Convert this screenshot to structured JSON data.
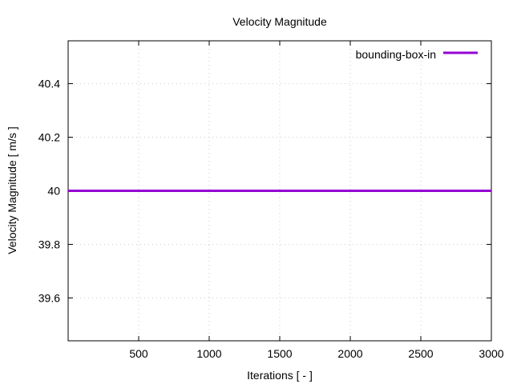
{
  "chart_data": {
    "type": "line",
    "title": "Velocity Magnitude",
    "xlabel": "Iterations [ - ]",
    "ylabel": "Velocity Magnitude [ m/s ]",
    "xlim": [
      0,
      3000
    ],
    "ylim": [
      39.44,
      40.56
    ],
    "x_ticks": [
      500,
      1000,
      1500,
      2000,
      2500,
      3000
    ],
    "y_ticks": [
      39.6,
      39.8,
      40,
      40.2,
      40.4
    ],
    "x_tick_labels": [
      "500",
      "1000",
      "1500",
      "2000",
      "2500",
      "3000"
    ],
    "y_tick_labels": [
      "39.6",
      "39.8",
      "40",
      "40.2",
      "40.4"
    ],
    "grid": true,
    "legend_position": "top-right",
    "series": [
      {
        "name": "bounding-box-in",
        "color": "#9400d3",
        "x": [
          0,
          500,
          1000,
          1500,
          2000,
          2500,
          3000
        ],
        "y": [
          40,
          40,
          40,
          40,
          40,
          40,
          40
        ]
      }
    ]
  }
}
